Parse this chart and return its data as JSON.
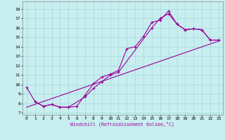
{
  "xlabel": "Windchill (Refroidissement éolien,°C)",
  "background_color": "#c8eef0",
  "grid_color": "#aadddd",
  "line_color": "#990099",
  "xlim": [
    -0.5,
    23.5
  ],
  "ylim": [
    6.8,
    18.8
  ],
  "xticks": [
    0,
    1,
    2,
    3,
    4,
    5,
    6,
    7,
    8,
    9,
    10,
    11,
    12,
    13,
    14,
    15,
    16,
    17,
    18,
    19,
    20,
    21,
    22,
    23
  ],
  "yticks": [
    7,
    8,
    9,
    10,
    11,
    12,
    13,
    14,
    15,
    16,
    17,
    18
  ],
  "line1_x": [
    0,
    1,
    2,
    3,
    4,
    5,
    6,
    7,
    8,
    9,
    10,
    11,
    12,
    13,
    14,
    15,
    16,
    17,
    18,
    19,
    20,
    21,
    22,
    23
  ],
  "line1_y": [
    9.7,
    8.2,
    7.7,
    7.9,
    7.6,
    7.6,
    7.7,
    8.9,
    10.1,
    10.8,
    11.1,
    11.5,
    13.8,
    14.0,
    15.1,
    16.6,
    16.8,
    17.8,
    16.4,
    15.8,
    15.9,
    15.8,
    14.7,
    14.7
  ],
  "line2_x": [
    1,
    2,
    3,
    4,
    5,
    7,
    8,
    9,
    10,
    11,
    15,
    16,
    17,
    18,
    19,
    20,
    21,
    22,
    23
  ],
  "line2_y": [
    8.2,
    7.7,
    7.9,
    7.6,
    7.6,
    8.7,
    9.6,
    10.3,
    11.0,
    11.3,
    16.0,
    17.0,
    17.5,
    16.4,
    15.8,
    15.9,
    15.8,
    14.7,
    14.7
  ],
  "line3_x": [
    0,
    23
  ],
  "line3_y": [
    7.6,
    14.6
  ]
}
